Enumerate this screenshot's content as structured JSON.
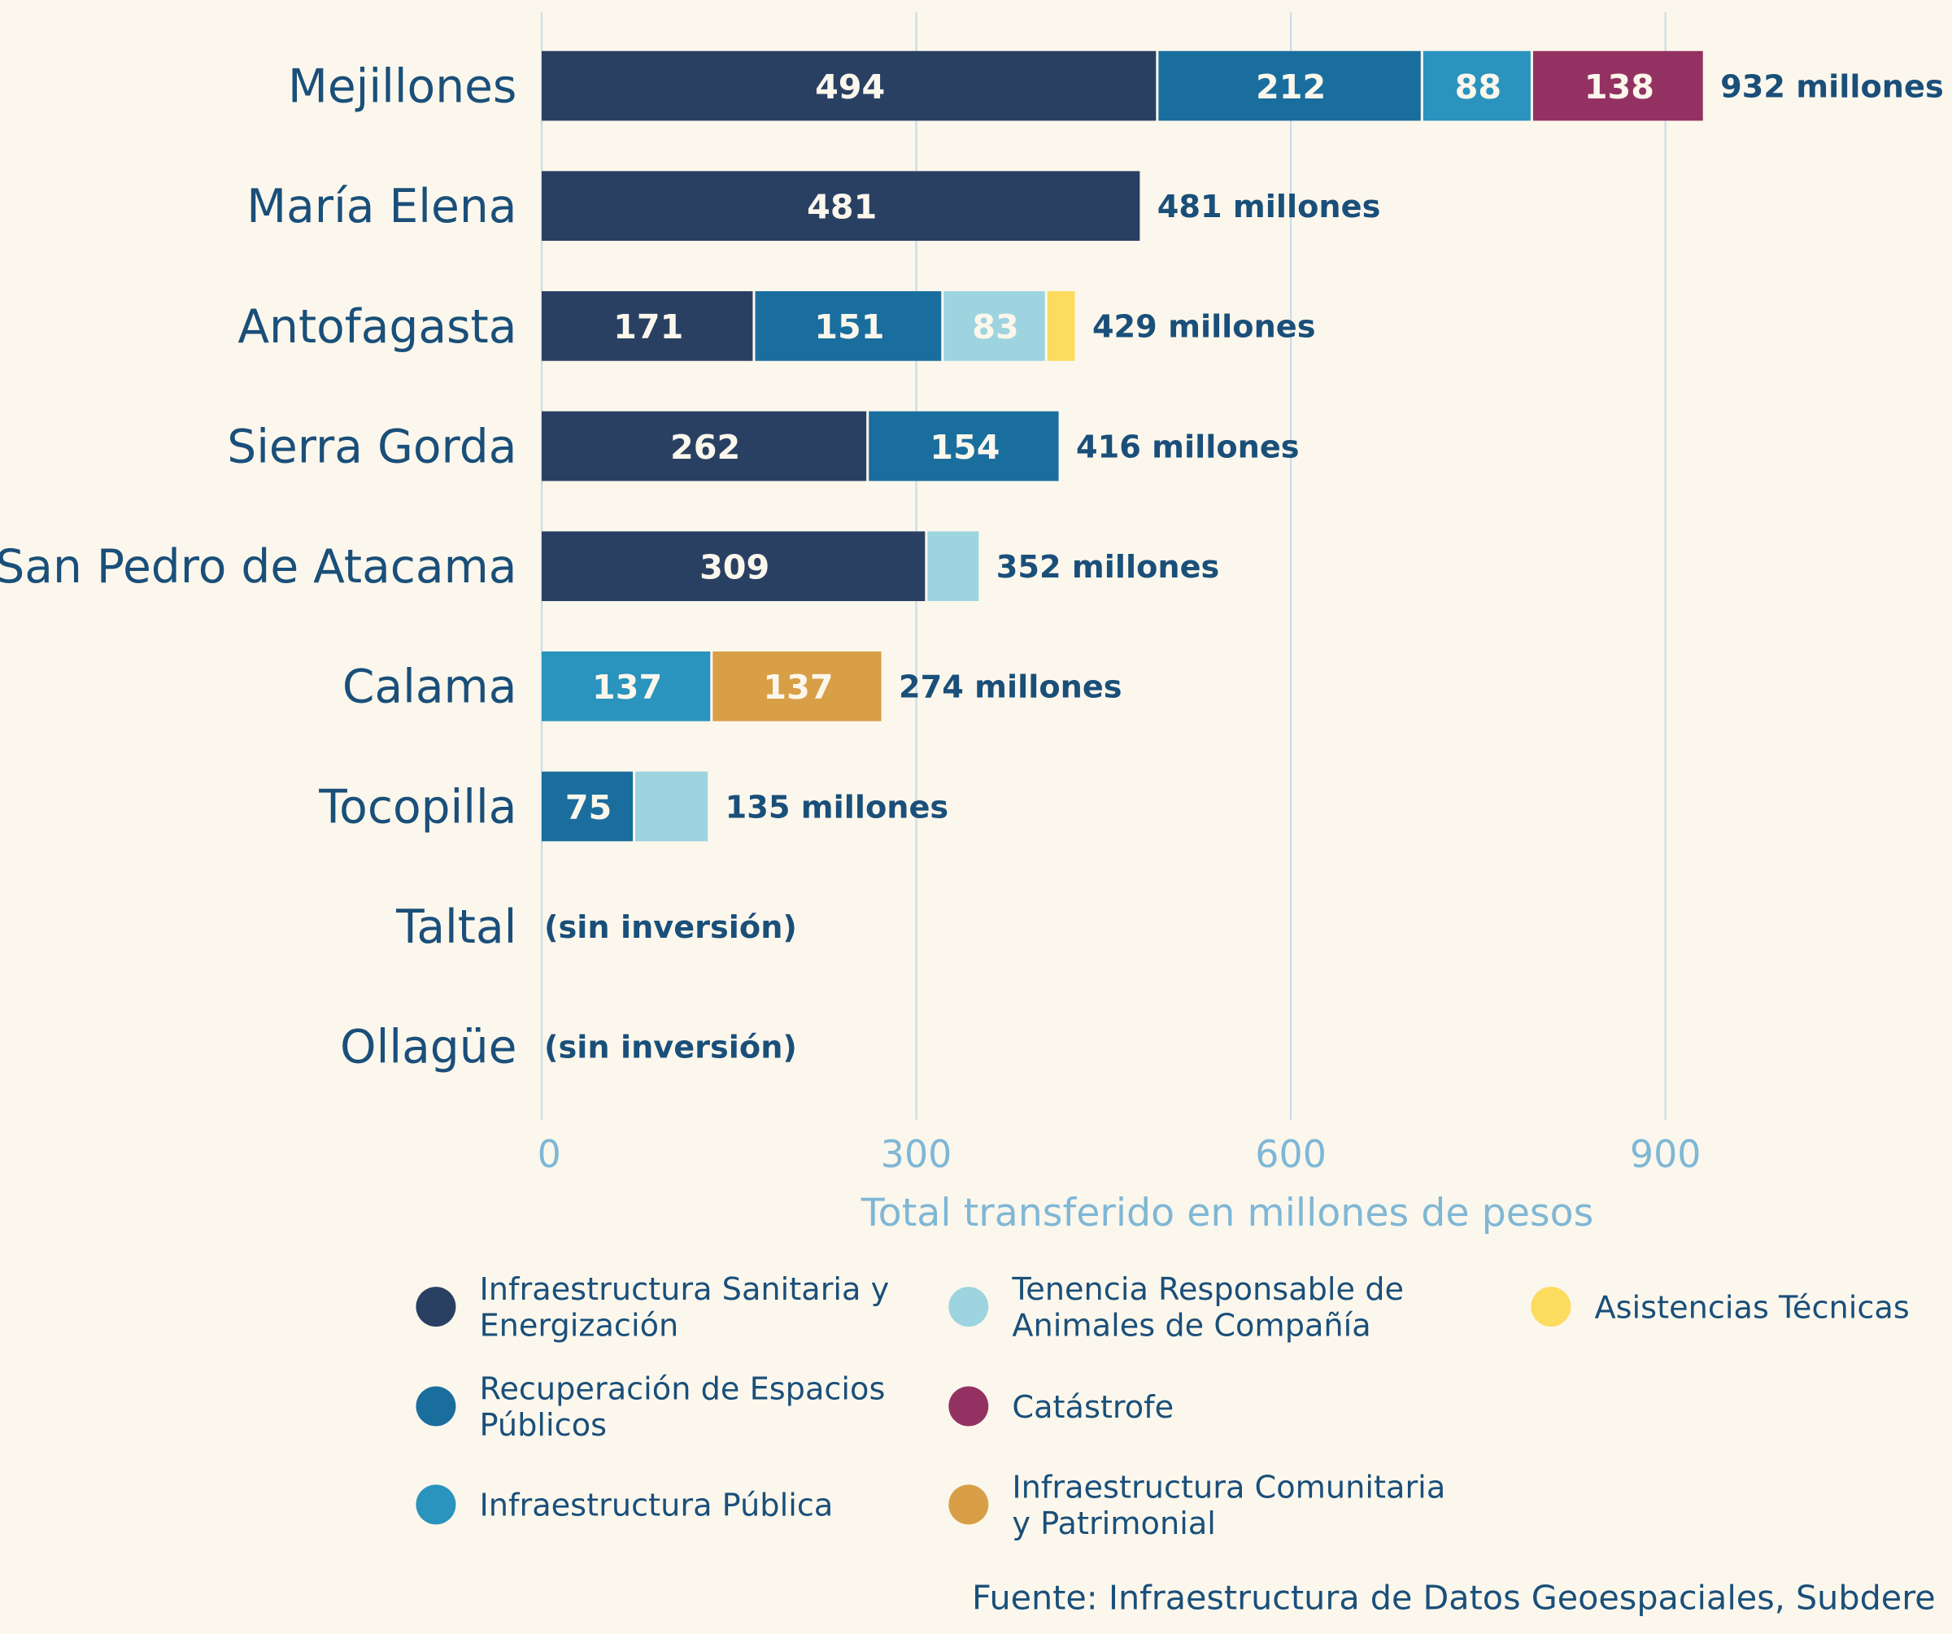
{
  "chart_data": {
    "type": "bar",
    "orientation": "horizontal",
    "stacked": true,
    "xlabel": "Total transferido en millones de pesos",
    "xlim": [
      0,
      1000
    ],
    "xticks": [
      0,
      300,
      600,
      900
    ],
    "grid": "vertical",
    "legend_position": "bottom",
    "categories": [
      "Mejillones",
      "María Elena",
      "Antofagasta",
      "Sierra Gorda",
      "San Pedro de Atacama",
      "Calama",
      "Tocopilla",
      "Taltal",
      "Ollagüe"
    ],
    "series": [
      {
        "name": "Infraestructura Sanitaria y Energización",
        "color": "#2a4063",
        "values": [
          494,
          481,
          171,
          262,
          309,
          0,
          0,
          0,
          0
        ]
      },
      {
        "name": "Recuperación de Espacios Públicos",
        "color": "#1a6e9e",
        "values": [
          212,
          0,
          151,
          154,
          0,
          0,
          75,
          0,
          0
        ]
      },
      {
        "name": "Infraestructura Pública",
        "color": "#2a93be",
        "values": [
          88,
          0,
          0,
          0,
          0,
          137,
          0,
          0,
          0
        ]
      },
      {
        "name": "Tenencia Responsable de Animales de Compañía",
        "color": "#9dd4df",
        "values": [
          0,
          0,
          83,
          0,
          43,
          0,
          60,
          0,
          0
        ]
      },
      {
        "name": "Catástrofe",
        "color": "#933262",
        "values": [
          138,
          0,
          0,
          0,
          0,
          0,
          0,
          0,
          0
        ]
      },
      {
        "name": "Infraestructura Comunitaria y Patrimonial",
        "color": "#d89f47",
        "values": [
          0,
          0,
          0,
          0,
          0,
          137,
          0,
          0,
          0
        ]
      },
      {
        "name": "Asistencias Técnicas",
        "color": "#fcdb5f",
        "values": [
          0,
          0,
          24,
          0,
          0,
          0,
          0,
          0,
          0
        ]
      }
    ],
    "totals": [
      "932 millones",
      "481 millones",
      "429 millones",
      "416 millones",
      "352 millones",
      "274 millones",
      "135 millones",
      "(sin inversión)",
      "(sin inversión)"
    ],
    "source": "Fuente: Infraestructura de Datos Geoespaciales, Subdere"
  },
  "colors": {
    "background": "#fcf7ec",
    "text": "#1a4f7a",
    "axis": "#7fb7d6",
    "grid": "#cddde6"
  }
}
